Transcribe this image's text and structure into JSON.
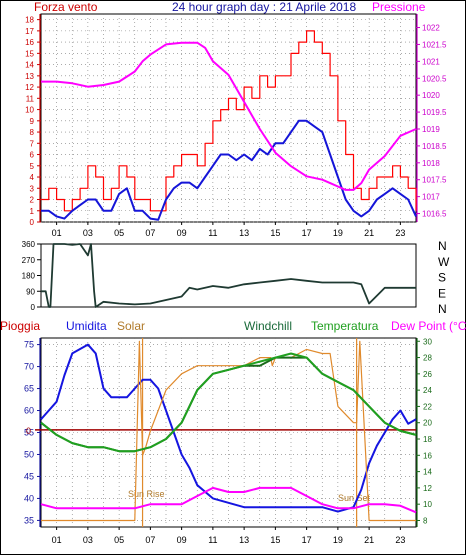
{
  "colors": {
    "wind_speed": "#ff0000",
    "gust": "#1515d8",
    "pressure": "#ff00ff",
    "direction": "#1f3a32",
    "humidity": "#1515e0",
    "solar": "#e08a2c",
    "windchill": "#1a6a1a",
    "temperature": "#20a020",
    "dewpoint": "#ff00ff",
    "rain": "#a00000",
    "grid": "#7a7a7a",
    "axis_red": "#cc0000"
  },
  "chart_data": [
    {
      "type": "line",
      "title": "24 hour graph day : 21 Aprile 2018",
      "left_label": "Forza vento",
      "right_label": "Pressione",
      "x_ticks": [
        "01",
        "03",
        "05",
        "07",
        "09",
        "11",
        "13",
        "15",
        "17",
        "19",
        "21",
        "23"
      ],
      "y_left_ticks": [
        "0",
        "1",
        "2",
        "3",
        "4",
        "5",
        "6",
        "7",
        "8",
        "9",
        "10",
        "11",
        "12",
        "13",
        "14",
        "15",
        "16",
        "17",
        "18"
      ],
      "y_right_ticks": [
        "1016.5",
        "1017",
        "1017.5",
        "1018",
        "1018.5",
        "1019",
        "1019.5",
        "1020",
        "1020.5",
        "1021",
        "1021.5",
        "1022"
      ],
      "ylim_left": [
        0,
        18.5
      ],
      "ylim_right": [
        1016.25,
        1022.4
      ],
      "xlim": [
        0,
        24
      ],
      "grid": true,
      "series": [
        {
          "key": "wind_speed",
          "x": [
            0,
            0.5,
            1,
            1.5,
            2,
            2.5,
            3,
            3.5,
            4,
            4.5,
            5,
            5.5,
            6,
            6.5,
            7,
            7.5,
            8,
            8.5,
            9,
            9.5,
            10,
            10.5,
            11,
            11.5,
            12,
            12.5,
            13,
            13.5,
            14,
            14.5,
            15,
            15.5,
            16,
            16.5,
            17,
            17.5,
            18,
            18.5,
            19,
            19.5,
            20,
            20.5,
            21,
            21.5,
            22,
            22.5,
            23,
            23.5,
            24
          ],
          "values": [
            2,
            3,
            2,
            1,
            2,
            3,
            5,
            4,
            2,
            3,
            5,
            4,
            2,
            2,
            1,
            1,
            4,
            5,
            6,
            6,
            5,
            7,
            9,
            10,
            11,
            10,
            12,
            11,
            13,
            12,
            13,
            13,
            15,
            16,
            17,
            16,
            15,
            13,
            9,
            6,
            3,
            2,
            3,
            4,
            4,
            5,
            4,
            3,
            1
          ]
        },
        {
          "key": "gust",
          "x": [
            0,
            0.5,
            1,
            1.5,
            2,
            2.5,
            3,
            3.5,
            4,
            4.5,
            5,
            5.5,
            6,
            6.5,
            7,
            7.5,
            8,
            8.5,
            9,
            9.5,
            10,
            10.5,
            11,
            11.5,
            12,
            12.5,
            13,
            13.5,
            14,
            14.5,
            15,
            15.5,
            16,
            16.5,
            17,
            17.5,
            18,
            18.5,
            19,
            19.5,
            20,
            20.5,
            21,
            21.5,
            22,
            22.5,
            23,
            23.5,
            24
          ],
          "values": [
            1,
            1,
            0.5,
            0.3,
            1,
            1.5,
            2,
            2,
            1,
            1,
            2.5,
            3,
            1,
            1,
            0.3,
            0.2,
            2,
            3,
            3.5,
            3.5,
            3,
            4,
            5,
            6,
            6,
            5.5,
            6,
            5.5,
            6.5,
            6,
            7,
            7,
            8,
            9,
            9,
            8.5,
            8,
            6,
            4,
            2,
            1,
            0.5,
            1,
            2,
            2.5,
            3,
            2.5,
            2,
            0.5
          ]
        },
        {
          "key": "pressure",
          "x": [
            0,
            1,
            2,
            3,
            4,
            5,
            6,
            6.5,
            7,
            8,
            9,
            10,
            10.5,
            11,
            12,
            13,
            14,
            15,
            16,
            17,
            18,
            18.5,
            19,
            19.5,
            20,
            20.5,
            21,
            22,
            23,
            24
          ],
          "values": [
            1020.4,
            1020.4,
            1020.35,
            1020.25,
            1020.3,
            1020.4,
            1020.7,
            1021.0,
            1021.2,
            1021.5,
            1021.55,
            1021.55,
            1021.4,
            1021.0,
            1020.6,
            1019.8,
            1019.0,
            1018.3,
            1017.9,
            1017.6,
            1017.5,
            1017.4,
            1017.3,
            1017.2,
            1017.2,
            1017.4,
            1017.8,
            1018.2,
            1018.8,
            1019.0
          ]
        }
      ]
    },
    {
      "type": "line",
      "y_left_ticks": [
        "0",
        "90",
        "180",
        "270",
        "360"
      ],
      "y_right_ticks": [
        "N",
        "W",
        "S",
        "E",
        "N"
      ],
      "ylim": [
        0,
        360
      ],
      "xlim": [
        0,
        24
      ],
      "series": [
        {
          "key": "direction",
          "x": [
            0,
            0.3,
            0.5,
            0.6,
            0.8,
            1.5,
            2,
            2.5,
            3,
            3.2,
            3.4,
            3.5,
            4,
            5,
            6,
            7,
            8,
            9,
            9.5,
            10,
            11,
            12,
            13,
            14,
            15,
            16,
            17,
            18,
            19,
            20,
            20.5,
            21,
            22,
            23,
            24
          ],
          "values": [
            90,
            90,
            0,
            0,
            360,
            360,
            355,
            360,
            295,
            360,
            90,
            0,
            30,
            20,
            15,
            20,
            40,
            60,
            110,
            100,
            120,
            110,
            130,
            140,
            150,
            160,
            150,
            140,
            140,
            140,
            130,
            20,
            110,
            110,
            110
          ]
        }
      ]
    },
    {
      "type": "line",
      "labels": [
        "Pioggia",
        "Umidita",
        "Solar",
        "Windchill",
        "Temperatura",
        "Dew Point (°C)"
      ],
      "y_left_ticks": [
        "35",
        "40",
        "45",
        "50",
        "55",
        "60",
        "65",
        "70",
        "75"
      ],
      "y_right_ticks": [
        "8",
        "10",
        "12",
        "14",
        "16",
        "18",
        "20",
        "22",
        "24",
        "26",
        "28",
        "30"
      ],
      "rain_value": "0",
      "ylim_left": [
        33.5,
        76.5
      ],
      "ylim_right": [
        7.2,
        30.4
      ],
      "xlim": [
        0,
        24
      ],
      "annotations": [
        "Sun Rise",
        "Sun Set"
      ],
      "sunrise_hour": 6.5,
      "sunset_hour": 20.2,
      "series": [
        {
          "key": "humidity",
          "x": [
            0,
            0.5,
            1,
            1.5,
            2,
            2.5,
            3,
            3.5,
            4,
            4.5,
            5,
            5.5,
            6,
            6.5,
            7,
            7.5,
            8,
            8.5,
            9,
            9.5,
            10,
            11,
            12,
            13,
            14,
            15,
            16,
            17,
            18,
            19,
            20,
            20.5,
            21,
            21.5,
            22,
            22.5,
            23,
            23.5,
            24
          ],
          "values": [
            58,
            60,
            62,
            68,
            73,
            74,
            75,
            73,
            65,
            63,
            63,
            63,
            65,
            67,
            67,
            65,
            60,
            55,
            50,
            47,
            43,
            40,
            39,
            38,
            38,
            38,
            38,
            38,
            38,
            37,
            38,
            42,
            48,
            52,
            55,
            58,
            60,
            57,
            58
          ]
        },
        {
          "key": "solar",
          "x": [
            0,
            1,
            2,
            3,
            4,
            5,
            6,
            6.3,
            6.5,
            6.7,
            7,
            8,
            9,
            10,
            11,
            12,
            13,
            14,
            14.7,
            14.8,
            15,
            16,
            17,
            18,
            18.5,
            19,
            19.5,
            20,
            20.2,
            20.4,
            21,
            22,
            23,
            24
          ],
          "values": [
            8,
            8,
            8,
            8,
            8,
            8,
            8,
            30,
            16,
            17,
            19,
            24,
            26,
            27,
            27,
            27,
            27,
            28,
            28,
            27,
            28,
            28,
            29,
            28.5,
            28.5,
            22,
            21,
            20,
            20,
            30,
            8,
            8,
            8,
            8
          ]
        },
        {
          "key": "windchill",
          "x": [
            0,
            1,
            2,
            3,
            4,
            5,
            6,
            7,
            8,
            9,
            10,
            11,
            12,
            13,
            14,
            15,
            16,
            17,
            18,
            19,
            20,
            21,
            22,
            23,
            24
          ],
          "values": [
            20,
            18.5,
            17.5,
            17,
            17,
            16.5,
            16.5,
            17,
            18,
            20,
            24,
            26,
            26.5,
            27,
            27,
            28,
            28,
            28,
            26,
            25,
            24,
            22,
            20,
            19,
            18.5
          ]
        },
        {
          "key": "temperature",
          "x": [
            0,
            1,
            2,
            3,
            4,
            5,
            6,
            7,
            8,
            9,
            10,
            11,
            12,
            13,
            14,
            15,
            16,
            17,
            18,
            19,
            20,
            21,
            22,
            23,
            24
          ],
          "values": [
            20,
            18.5,
            17.5,
            17,
            17,
            16.5,
            16.5,
            17,
            18,
            20,
            24,
            26,
            26.5,
            27,
            27.5,
            28,
            28.5,
            28,
            26,
            25,
            24,
            22,
            20,
            19,
            18.5
          ]
        },
        {
          "key": "dewpoint",
          "x": [
            0,
            1,
            2,
            3,
            4,
            5,
            6,
            7,
            8,
            9,
            10,
            11,
            12,
            13,
            14,
            15,
            16,
            17,
            18,
            19,
            20,
            21,
            22,
            23,
            24
          ],
          "values": [
            10,
            9.5,
            9.5,
            9.5,
            9.5,
            9.5,
            9.5,
            10,
            10,
            10,
            11,
            12,
            11.5,
            11.5,
            12,
            12,
            12,
            11,
            10,
            9.5,
            9.5,
            10,
            10,
            9.8,
            9
          ]
        }
      ]
    }
  ]
}
